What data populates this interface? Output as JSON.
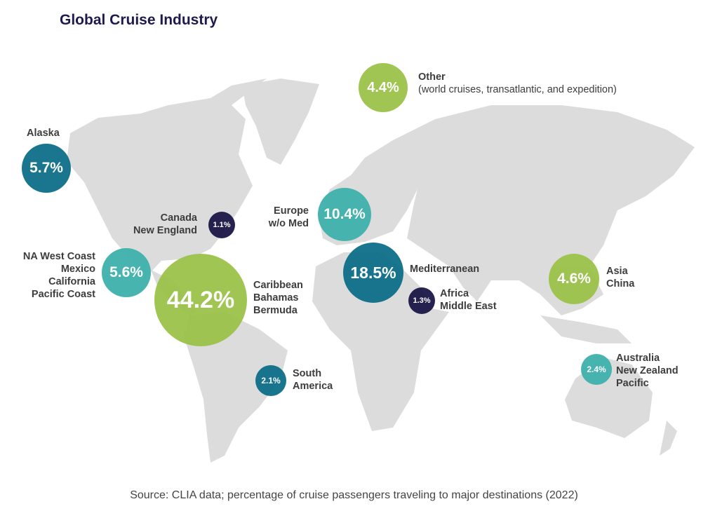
{
  "title": "Global Cruise Industry",
  "colors": {
    "green": "#9bc24a",
    "teal_light": "#3fb1ac",
    "teal_dark": "#0d6f88",
    "navy": "#1c1848",
    "land": "#dcdcdc"
  },
  "regions": [
    {
      "id": "other",
      "value": "4.4%",
      "lines": [
        "Other"
      ],
      "sub": "(world cruises, transatlantic, and expedition)"
    },
    {
      "id": "alaska",
      "value": "5.7%",
      "lines": [
        "Alaska"
      ]
    },
    {
      "id": "canada",
      "value": "1.1%",
      "lines": [
        "Canada",
        "New England"
      ]
    },
    {
      "id": "europe",
      "value": "10.4%",
      "lines": [
        "Europe",
        "w/o Med"
      ]
    },
    {
      "id": "nawest",
      "value": "5.6%",
      "lines": [
        "NA West Coast",
        "Mexico",
        "California",
        "Pacific Coast"
      ]
    },
    {
      "id": "caribbean",
      "value": "44.2%",
      "lines": [
        "Caribbean",
        "Bahamas",
        "Bermuda"
      ]
    },
    {
      "id": "med",
      "value": "18.5%",
      "lines": [
        "Mediterranean"
      ]
    },
    {
      "id": "africa",
      "value": "1.3%",
      "lines": [
        "Africa",
        "Middle East"
      ]
    },
    {
      "id": "asia",
      "value": "4.6%",
      "lines": [
        "Asia",
        "China"
      ]
    },
    {
      "id": "southam",
      "value": "2.1%",
      "lines": [
        "South",
        "America"
      ]
    },
    {
      "id": "australia",
      "value": "2.4%",
      "lines": [
        "Australia",
        "New Zealand",
        "Pacific"
      ]
    }
  ],
  "source": "Source: CLIA data; percentage of cruise passengers traveling to major destinations (2022)"
}
